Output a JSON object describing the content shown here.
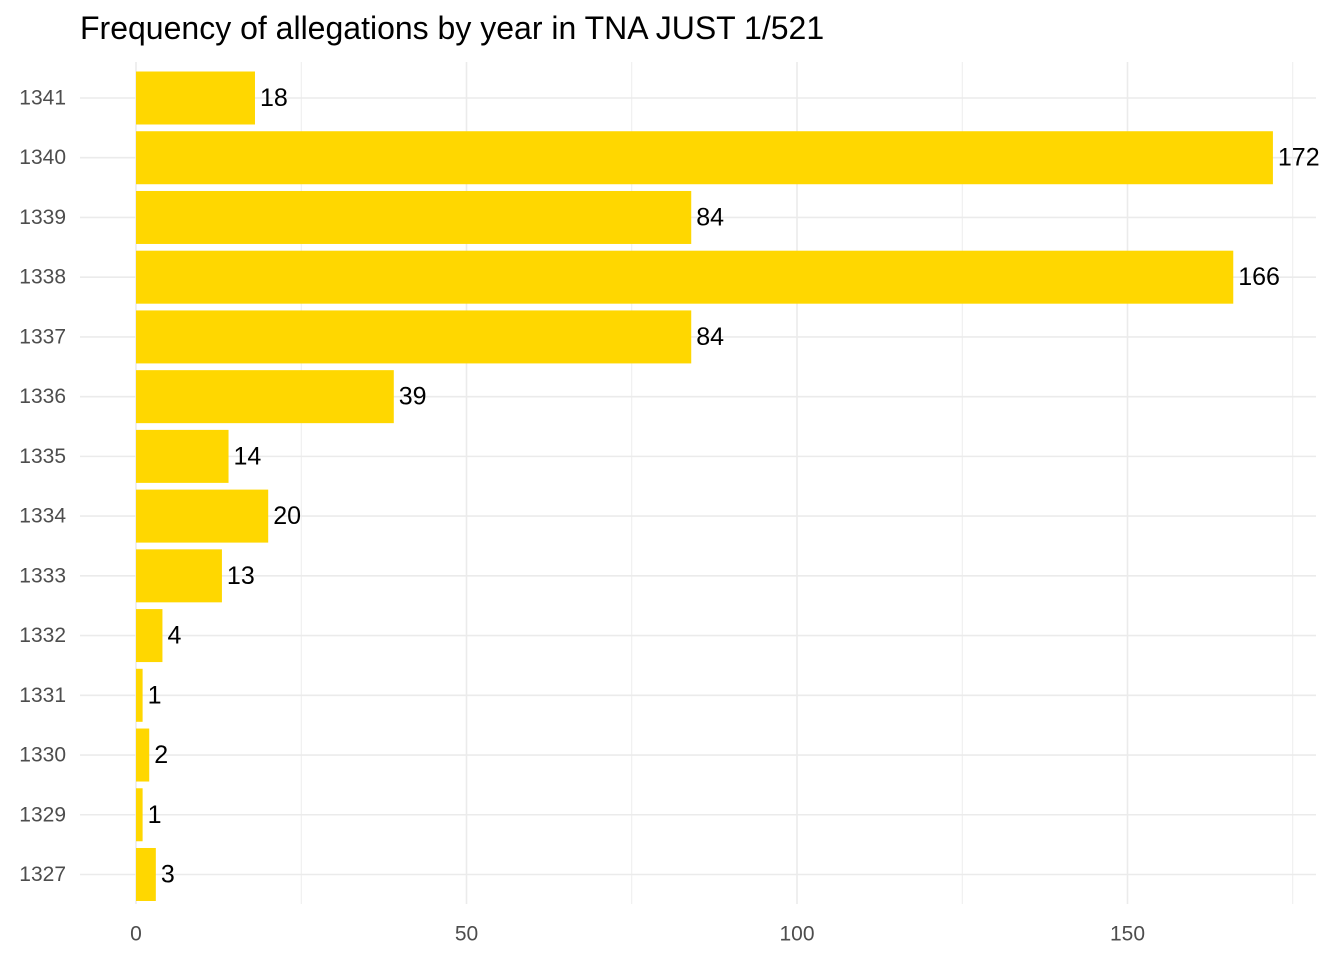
{
  "chart_data": {
    "type": "bar",
    "orientation": "horizontal",
    "title": "Frequency of allegations by year in TNA JUST 1/521",
    "xlabel": "",
    "ylabel": "",
    "categories": [
      "1341",
      "1340",
      "1339",
      "1338",
      "1337",
      "1336",
      "1335",
      "1334",
      "1333",
      "1332",
      "1331",
      "1330",
      "1329",
      "1327"
    ],
    "values": [
      18,
      172,
      84,
      166,
      84,
      39,
      14,
      20,
      13,
      4,
      1,
      2,
      1,
      3
    ],
    "xlim": [
      0,
      176
    ],
    "x_ticks": [
      0,
      50,
      100,
      150
    ],
    "x_tick_labels": [
      "0",
      "50",
      "100",
      "150"
    ],
    "grid": true,
    "legend": "none",
    "bar_color": "#FFD700",
    "grid_color": "#ebebeb",
    "data_labels": true
  }
}
